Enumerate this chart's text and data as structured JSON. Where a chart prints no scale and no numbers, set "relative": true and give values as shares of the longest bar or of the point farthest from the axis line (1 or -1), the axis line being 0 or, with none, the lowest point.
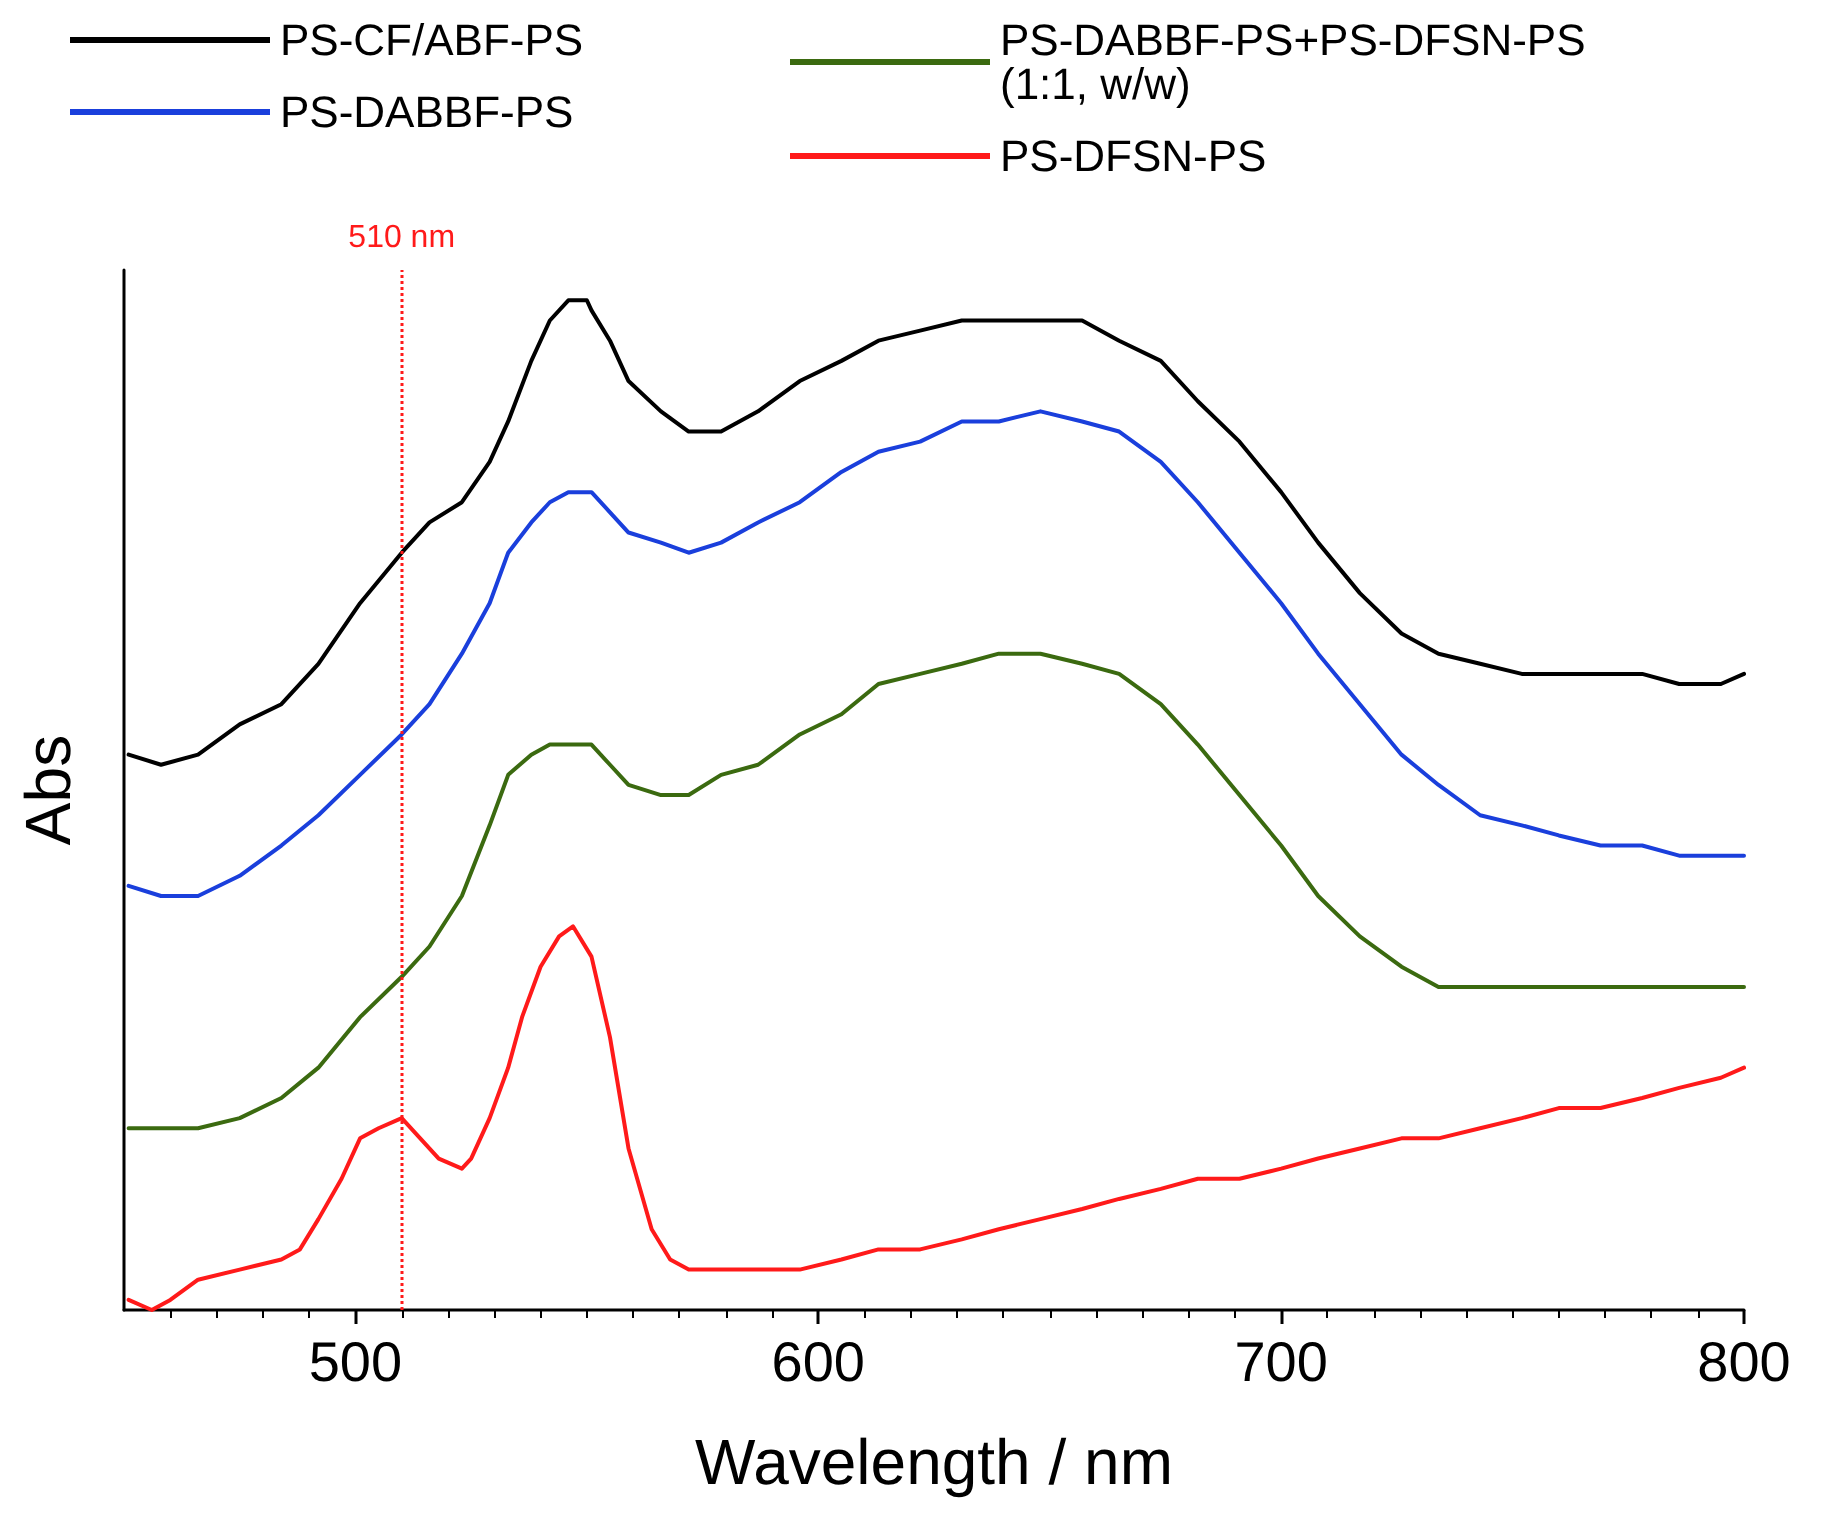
{
  "chart_data": {
    "type": "line",
    "xlabel": "Wavelength / nm",
    "ylabel": "Abs",
    "relative": true,
    "xlim": [
      450,
      800
    ],
    "xticks": [
      500,
      600,
      700,
      800
    ],
    "legend": "top",
    "grid": false,
    "marker": "none",
    "line_style": "solid",
    "series": [
      {
        "name": "PS-CF/ABF-PS",
        "color": "#000000",
        "x": [
          451,
          458,
          466,
          475,
          484,
          492,
          501,
          510,
          516,
          523,
          529,
          533,
          538,
          542,
          546,
          550,
          551,
          555,
          559,
          566,
          572,
          579,
          587,
          596,
          605,
          613,
          622,
          631,
          639,
          648,
          657,
          665,
          674,
          682,
          691,
          700,
          708,
          717,
          726,
          734,
          743,
          752,
          760,
          769,
          778,
          786,
          795,
          800
        ],
        "values": [
          0.55,
          0.54,
          0.55,
          0.58,
          0.6,
          0.64,
          0.7,
          0.75,
          0.78,
          0.8,
          0.84,
          0.88,
          0.94,
          0.98,
          1.0,
          1.0,
          0.99,
          0.96,
          0.92,
          0.89,
          0.87,
          0.87,
          0.89,
          0.92,
          0.94,
          0.96,
          0.97,
          0.98,
          0.98,
          0.98,
          0.98,
          0.96,
          0.94,
          0.9,
          0.86,
          0.81,
          0.76,
          0.71,
          0.67,
          0.65,
          0.64,
          0.63,
          0.63,
          0.63,
          0.63,
          0.62,
          0.62,
          0.63
        ]
      },
      {
        "name": "PS-DABBF-PS",
        "color": "#1a3fdc",
        "x": [
          451,
          458,
          466,
          475,
          484,
          492,
          501,
          510,
          516,
          523,
          529,
          533,
          538,
          542,
          546,
          551,
          555,
          559,
          566,
          572,
          579,
          587,
          596,
          605,
          613,
          622,
          631,
          639,
          648,
          657,
          665,
          674,
          682,
          691,
          700,
          708,
          717,
          726,
          734,
          743,
          752,
          760,
          769,
          778,
          786,
          795,
          800
        ],
        "values": [
          0.42,
          0.41,
          0.41,
          0.43,
          0.46,
          0.49,
          0.53,
          0.57,
          0.6,
          0.65,
          0.7,
          0.75,
          0.78,
          0.8,
          0.81,
          0.81,
          0.79,
          0.77,
          0.76,
          0.75,
          0.76,
          0.78,
          0.8,
          0.83,
          0.85,
          0.86,
          0.88,
          0.88,
          0.89,
          0.88,
          0.87,
          0.84,
          0.8,
          0.75,
          0.7,
          0.65,
          0.6,
          0.55,
          0.52,
          0.49,
          0.48,
          0.47,
          0.46,
          0.46,
          0.45,
          0.45,
          0.45
        ]
      },
      {
        "name": "PS-DABBF-PS+PS-DFSN-PS (1:1, w/w)",
        "color": "#3b6a10",
        "x": [
          451,
          458,
          466,
          475,
          484,
          492,
          501,
          510,
          516,
          523,
          529,
          533,
          538,
          542,
          546,
          551,
          555,
          559,
          566,
          572,
          579,
          587,
          596,
          605,
          613,
          622,
          631,
          639,
          648,
          657,
          665,
          674,
          682,
          691,
          700,
          708,
          717,
          726,
          734,
          743,
          752,
          760,
          769,
          778,
          786,
          795,
          800
        ],
        "values": [
          0.18,
          0.18,
          0.18,
          0.19,
          0.21,
          0.24,
          0.29,
          0.33,
          0.36,
          0.41,
          0.48,
          0.53,
          0.55,
          0.56,
          0.56,
          0.56,
          0.54,
          0.52,
          0.51,
          0.51,
          0.53,
          0.54,
          0.57,
          0.59,
          0.62,
          0.63,
          0.64,
          0.65,
          0.65,
          0.64,
          0.63,
          0.6,
          0.56,
          0.51,
          0.46,
          0.41,
          0.37,
          0.34,
          0.32,
          0.32,
          0.32,
          0.32,
          0.32,
          0.32,
          0.32,
          0.32,
          0.32
        ]
      },
      {
        "name": "PS-DFSN-PS",
        "color": "#ff1a1a",
        "x": [
          451,
          456,
          460,
          466,
          475,
          484,
          488,
          492,
          497,
          501,
          505,
          510,
          514,
          518,
          523,
          525,
          529,
          533,
          536,
          540,
          544,
          547,
          551,
          555,
          559,
          564,
          568,
          572,
          579,
          587,
          596,
          605,
          613,
          622,
          631,
          639,
          648,
          657,
          665,
          674,
          682,
          691,
          700,
          708,
          717,
          726,
          734,
          743,
          752,
          760,
          769,
          778,
          786,
          795,
          800
        ],
        "values": [
          0.01,
          0.0,
          0.01,
          0.03,
          0.04,
          0.05,
          0.06,
          0.09,
          0.13,
          0.17,
          0.18,
          0.19,
          0.17,
          0.15,
          0.14,
          0.15,
          0.19,
          0.24,
          0.29,
          0.34,
          0.37,
          0.38,
          0.35,
          0.27,
          0.16,
          0.08,
          0.05,
          0.04,
          0.04,
          0.04,
          0.04,
          0.05,
          0.06,
          0.06,
          0.07,
          0.08,
          0.09,
          0.1,
          0.11,
          0.12,
          0.13,
          0.13,
          0.14,
          0.15,
          0.16,
          0.17,
          0.17,
          0.18,
          0.19,
          0.2,
          0.2,
          0.21,
          0.22,
          0.23,
          0.24
        ]
      }
    ],
    "ref_lines": [
      {
        "axis": "x",
        "value": 510,
        "label": "510 nm",
        "color": "#ff1a1a",
        "line_style": "dotted"
      }
    ]
  }
}
